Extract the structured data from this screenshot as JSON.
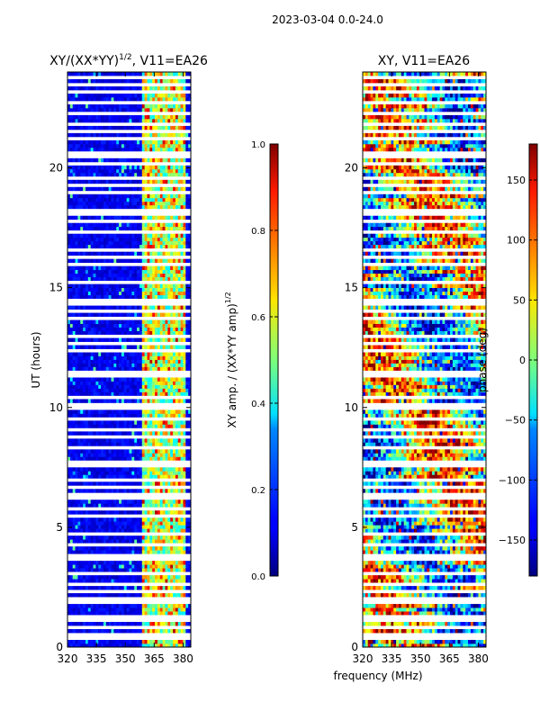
{
  "figure": {
    "suptitle": "2023-03-04 0.0-24.0",
    "shared_xlabel": "frequency (MHz)"
  },
  "chart_data": [
    {
      "type": "heatmap",
      "title": "XY/(XX*YY)^1/2, V11=EA26",
      "title_base": "XY/(XX*YY)",
      "title_exp": "1/2",
      "title_suffix": ", V11=EA26",
      "xlabel": "frequency (MHz)",
      "ylabel": "UT (hours)",
      "xlim": [
        320,
        384
      ],
      "ylim": [
        0,
        24
      ],
      "xticks": [
        "320",
        "335",
        "350",
        "365",
        "380"
      ],
      "yticks": [
        "0",
        "5",
        "10",
        "15",
        "20"
      ],
      "colorbar": {
        "label_base": "XY amp. / (XX*YY amp)",
        "label_exp": "1/2",
        "range": [
          0.0,
          1.0
        ],
        "ticks": [
          "0.0",
          "0.2",
          "0.4",
          "0.6",
          "0.8",
          "1.0"
        ],
        "colormap": "jet"
      },
      "note": "Mostly low amplitude (~0.05-0.2) across 320-358 MHz; bright band (~0.4-0.8) at 358-382 MHz; horizontal white gaps indicate flagged time ranges."
    },
    {
      "type": "heatmap",
      "title": "XY, V11=EA26",
      "xlabel": "frequency (MHz)",
      "ylabel": "",
      "xlim": [
        320,
        384
      ],
      "ylim": [
        0,
        24
      ],
      "xticks": [
        "320",
        "335",
        "350",
        "365",
        "380"
      ],
      "yticks": [
        "0",
        "5",
        "10",
        "15",
        "20"
      ],
      "colorbar": {
        "label": "phase (deg)",
        "range": [
          -180,
          180
        ],
        "ticks": [
          "−150",
          "−100",
          "−50",
          "0",
          "50",
          "100",
          "150"
        ],
        "tick_values": [
          -150,
          -100,
          -50,
          0,
          50,
          100,
          150
        ],
        "colormap": "jet"
      },
      "note": "Phase varies widely (-180 to 180 deg) with noisy structure; horizontal white gaps indicate flagged time ranges."
    }
  ]
}
